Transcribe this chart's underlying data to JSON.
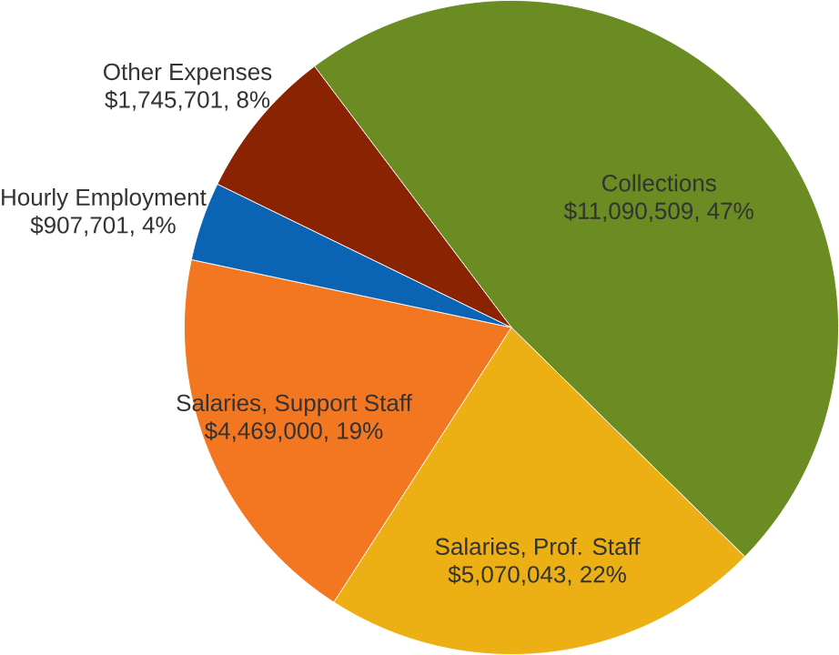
{
  "chart_data": {
    "type": "pie",
    "categories": [
      "Collections",
      "Salaries, Prof. Staff",
      "Salaries, Support Staff",
      "Hourly Employment",
      "Other Expenses"
    ],
    "values": [
      11090509,
      5070043,
      4469000,
      907701,
      1745701
    ],
    "value_labels": [
      "$11,090,509, 47%",
      "$5,070,043, 22%",
      "$4,469,000, 19%",
      "$907,701, 4%",
      "$1,745,701, 8%"
    ],
    "colors": [
      "#6a8c23",
      "#ecb014",
      "#f37621",
      "#0a63b3",
      "#8a2302"
    ]
  }
}
